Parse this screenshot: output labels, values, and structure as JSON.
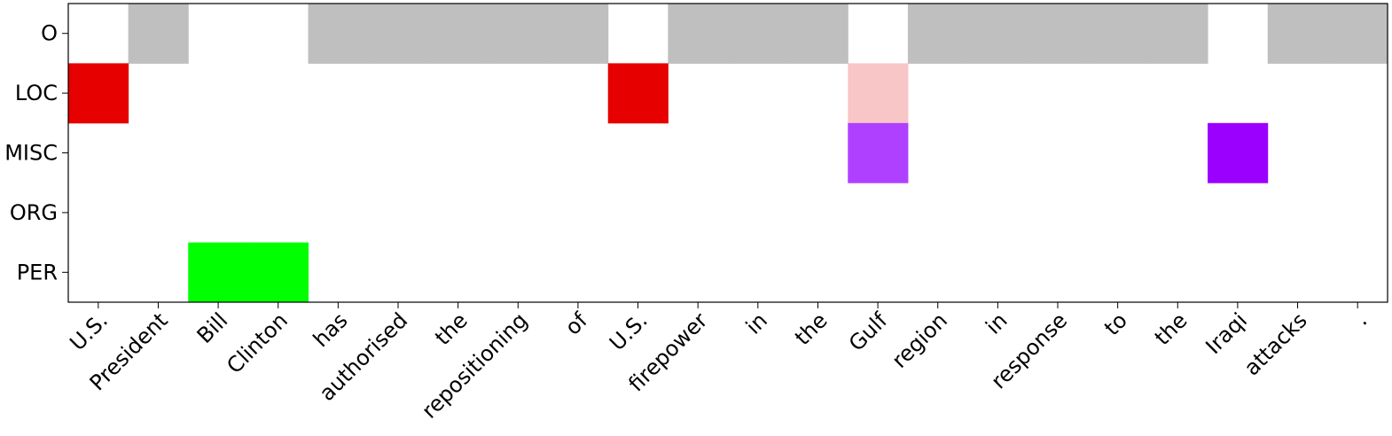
{
  "chart_data": {
    "type": "heatmap",
    "title": "",
    "xlabel": "",
    "ylabel": "",
    "x_tokens": [
      "U.S.",
      "President",
      "Bill",
      "Clinton",
      "has",
      "authorised",
      "the",
      "repositioning",
      "of",
      "U.S.",
      "firepower",
      "in",
      "the",
      "Gulf",
      "region",
      "in",
      "response",
      "to",
      "the",
      "Iraqi",
      "attacks",
      "."
    ],
    "y_labels": [
      "O",
      "LOC",
      "MISC",
      "ORG",
      "PER"
    ],
    "cells": [
      {
        "row": "O",
        "col": 1,
        "color": "#bfbfbf"
      },
      {
        "row": "O",
        "col": 4,
        "color": "#bfbfbf"
      },
      {
        "row": "O",
        "col": 5,
        "color": "#bfbfbf"
      },
      {
        "row": "O",
        "col": 6,
        "color": "#bfbfbf"
      },
      {
        "row": "O",
        "col": 7,
        "color": "#bfbfbf"
      },
      {
        "row": "O",
        "col": 8,
        "color": "#bfbfbf"
      },
      {
        "row": "O",
        "col": 10,
        "color": "#bfbfbf"
      },
      {
        "row": "O",
        "col": 11,
        "color": "#bfbfbf"
      },
      {
        "row": "O",
        "col": 12,
        "color": "#bfbfbf"
      },
      {
        "row": "O",
        "col": 14,
        "color": "#bfbfbf"
      },
      {
        "row": "O",
        "col": 15,
        "color": "#bfbfbf"
      },
      {
        "row": "O",
        "col": 16,
        "color": "#bfbfbf"
      },
      {
        "row": "O",
        "col": 17,
        "color": "#bfbfbf"
      },
      {
        "row": "O",
        "col": 18,
        "color": "#bfbfbf"
      },
      {
        "row": "O",
        "col": 20,
        "color": "#bfbfbf"
      },
      {
        "row": "O",
        "col": 21,
        "color": "#bfbfbf"
      },
      {
        "row": "LOC",
        "col": 0,
        "color": "#e60000"
      },
      {
        "row": "LOC",
        "col": 9,
        "color": "#e60000"
      },
      {
        "row": "LOC",
        "col": 13,
        "color": "#f8c6c6"
      },
      {
        "row": "MISC",
        "col": 13,
        "color": "#b040ff"
      },
      {
        "row": "MISC",
        "col": 19,
        "color": "#9b00ff"
      },
      {
        "row": "PER",
        "col": 2,
        "color": "#00ff00"
      },
      {
        "row": "PER",
        "col": 3,
        "color": "#00ff00"
      }
    ],
    "background_color": "#ffffff",
    "grid": false,
    "legend": "none"
  }
}
